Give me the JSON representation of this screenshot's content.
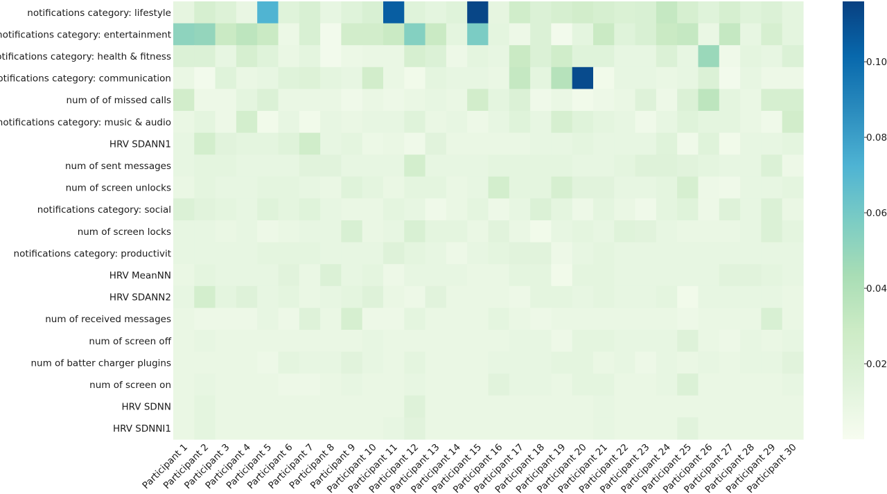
{
  "chart_data": {
    "type": "heatmap",
    "colormap": "GnBu",
    "colormap_stops": [
      "#f7fcf0",
      "#e0f3db",
      "#ccebc5",
      "#a8ddb5",
      "#7bccc4",
      "#4eb3d3",
      "#2b8cbe",
      "#0868ac",
      "#084081"
    ],
    "vmin": 0.0,
    "vmax": 0.116,
    "colorbar_ticks": [
      0.02,
      0.04,
      0.06,
      0.08,
      0.1
    ],
    "colorbar_tick_labels": [
      "0.02",
      "0.04",
      "0.06",
      "0.08",
      "0.10"
    ],
    "x_categories": [
      "Participant 1",
      "Participant 2",
      "Participant 3",
      "Participant 4",
      "Participant 5",
      "Participant 6",
      "Participant 7",
      "Participant 8",
      "Participant 9",
      "Participant 10",
      "Participant 11",
      "Participant 12",
      "Participant 13",
      "Participant 14",
      "Participant 15",
      "Participant 16",
      "Participant 17",
      "Participant 18",
      "Participant 19",
      "Participant 20",
      "Participant 21",
      "Participant 22",
      "Participant 23",
      "Participant 24",
      "Participant 25",
      "Participant 26",
      "Participant 27",
      "Participant 28",
      "Participant 29",
      "Participant 30"
    ],
    "y_categories": [
      "notifications category: lifestyle",
      "notifications category: entertainment",
      "notifications category: health & fitness",
      "notifications category: communication",
      "num of of missed calls",
      "notifications category: music & audio",
      "HRV SDANN1",
      "num of sent messages",
      "num of screen unlocks",
      "notifications category: social",
      "num of screen locks",
      "notifications category: productivit",
      "HRV MeanNN",
      "HRV SDANN2",
      "num of received messages",
      "num of screen off",
      "num of batter charger plugins",
      "num of screen on",
      "HRV SDNN",
      "HRV SDNNI1"
    ],
    "values": [
      [
        0.011,
        0.022,
        0.017,
        0.009,
        0.072,
        0.015,
        0.02,
        0.01,
        0.015,
        0.02,
        0.105,
        0.015,
        0.012,
        0.015,
        0.114,
        0.011,
        0.026,
        0.018,
        0.022,
        0.025,
        0.022,
        0.019,
        0.02,
        0.032,
        0.022,
        0.015,
        0.022,
        0.015,
        0.018,
        0.012
      ],
      [
        0.052,
        0.05,
        0.03,
        0.035,
        0.03,
        0.007,
        0.02,
        0.003,
        0.025,
        0.025,
        0.03,
        0.055,
        0.03,
        0.012,
        0.058,
        0.012,
        0.006,
        0.018,
        0.003,
        0.012,
        0.03,
        0.015,
        0.02,
        0.03,
        0.032,
        0.008,
        0.032,
        0.01,
        0.022,
        0.012
      ],
      [
        0.018,
        0.018,
        0.01,
        0.022,
        0.015,
        0.008,
        0.012,
        0.003,
        0.007,
        0.008,
        0.008,
        0.022,
        0.018,
        0.006,
        0.012,
        0.01,
        0.03,
        0.018,
        0.026,
        0.015,
        0.015,
        0.01,
        0.01,
        0.018,
        0.01,
        0.048,
        0.005,
        0.012,
        0.01,
        0.018
      ],
      [
        0.008,
        0.003,
        0.015,
        0.008,
        0.01,
        0.015,
        0.017,
        0.012,
        0.01,
        0.025,
        0.008,
        0.004,
        0.012,
        0.01,
        0.01,
        0.008,
        0.032,
        0.012,
        0.038,
        0.112,
        0.004,
        0.01,
        0.01,
        0.008,
        0.01,
        0.018,
        0.003,
        0.01,
        0.006,
        0.006
      ],
      [
        0.025,
        0.006,
        0.006,
        0.012,
        0.018,
        0.008,
        0.008,
        0.008,
        0.005,
        0.008,
        0.006,
        0.008,
        0.01,
        0.008,
        0.025,
        0.012,
        0.018,
        0.005,
        0.008,
        0.004,
        0.006,
        0.008,
        0.016,
        0.006,
        0.018,
        0.035,
        0.012,
        0.008,
        0.022,
        0.022
      ],
      [
        0.008,
        0.012,
        0.006,
        0.024,
        0.004,
        0.01,
        0.004,
        0.01,
        0.008,
        0.01,
        0.01,
        0.015,
        0.008,
        0.01,
        0.006,
        0.01,
        0.015,
        0.01,
        0.022,
        0.015,
        0.012,
        0.01,
        0.005,
        0.01,
        0.015,
        0.012,
        0.012,
        0.008,
        0.005,
        0.025
      ],
      [
        0.01,
        0.024,
        0.014,
        0.012,
        0.012,
        0.015,
        0.026,
        0.01,
        0.012,
        0.007,
        0.008,
        0.005,
        0.014,
        0.008,
        0.008,
        0.008,
        0.008,
        0.01,
        0.01,
        0.012,
        0.01,
        0.01,
        0.01,
        0.015,
        0.005,
        0.015,
        0.004,
        0.01,
        0.01,
        0.012
      ],
      [
        0.01,
        0.012,
        0.012,
        0.01,
        0.01,
        0.01,
        0.014,
        0.014,
        0.01,
        0.01,
        0.01,
        0.024,
        0.01,
        0.01,
        0.01,
        0.012,
        0.012,
        0.012,
        0.012,
        0.01,
        0.01,
        0.012,
        0.016,
        0.016,
        0.014,
        0.012,
        0.01,
        0.01,
        0.018,
        0.006
      ],
      [
        0.008,
        0.012,
        0.01,
        0.01,
        0.012,
        0.012,
        0.01,
        0.008,
        0.015,
        0.012,
        0.008,
        0.012,
        0.012,
        0.008,
        0.01,
        0.024,
        0.012,
        0.012,
        0.022,
        0.014,
        0.014,
        0.01,
        0.01,
        0.012,
        0.022,
        0.006,
        0.005,
        0.01,
        0.01,
        0.012
      ],
      [
        0.018,
        0.014,
        0.012,
        0.01,
        0.015,
        0.012,
        0.015,
        0.01,
        0.008,
        0.008,
        0.012,
        0.01,
        0.005,
        0.008,
        0.012,
        0.006,
        0.01,
        0.018,
        0.012,
        0.006,
        0.012,
        0.008,
        0.005,
        0.012,
        0.015,
        0.006,
        0.016,
        0.01,
        0.018,
        0.008
      ],
      [
        0.01,
        0.01,
        0.008,
        0.01,
        0.006,
        0.008,
        0.01,
        0.01,
        0.02,
        0.008,
        0.01,
        0.02,
        0.012,
        0.012,
        0.008,
        0.014,
        0.008,
        0.004,
        0.01,
        0.012,
        0.01,
        0.015,
        0.014,
        0.01,
        0.008,
        0.008,
        0.008,
        0.01,
        0.018,
        0.012
      ],
      [
        0.01,
        0.01,
        0.01,
        0.01,
        0.012,
        0.012,
        0.012,
        0.01,
        0.01,
        0.01,
        0.016,
        0.012,
        0.01,
        0.006,
        0.01,
        0.012,
        0.014,
        0.014,
        0.006,
        0.01,
        0.012,
        0.01,
        0.01,
        0.01,
        0.01,
        0.01,
        0.01,
        0.01,
        0.01,
        0.01
      ],
      [
        0.008,
        0.012,
        0.01,
        0.01,
        0.01,
        0.014,
        0.008,
        0.018,
        0.01,
        0.012,
        0.006,
        0.01,
        0.01,
        0.01,
        0.008,
        0.008,
        0.012,
        0.012,
        0.004,
        0.012,
        0.012,
        0.01,
        0.01,
        0.01,
        0.01,
        0.01,
        0.014,
        0.014,
        0.012,
        0.01
      ],
      [
        0.01,
        0.024,
        0.012,
        0.016,
        0.01,
        0.012,
        0.008,
        0.01,
        0.012,
        0.016,
        0.008,
        0.006,
        0.014,
        0.008,
        0.008,
        0.008,
        0.006,
        0.012,
        0.012,
        0.01,
        0.012,
        0.01,
        0.01,
        0.012,
        0.004,
        0.01,
        0.01,
        0.01,
        0.01,
        0.008
      ],
      [
        0.008,
        0.006,
        0.006,
        0.006,
        0.01,
        0.006,
        0.016,
        0.008,
        0.022,
        0.006,
        0.006,
        0.012,
        0.008,
        0.008,
        0.008,
        0.012,
        0.008,
        0.006,
        0.008,
        0.008,
        0.008,
        0.008,
        0.008,
        0.008,
        0.006,
        0.008,
        0.008,
        0.008,
        0.02,
        0.008
      ],
      [
        0.008,
        0.01,
        0.008,
        0.008,
        0.008,
        0.008,
        0.008,
        0.008,
        0.008,
        0.01,
        0.008,
        0.008,
        0.008,
        0.008,
        0.008,
        0.008,
        0.01,
        0.01,
        0.006,
        0.012,
        0.012,
        0.01,
        0.01,
        0.01,
        0.016,
        0.008,
        0.006,
        0.01,
        0.008,
        0.01
      ],
      [
        0.008,
        0.008,
        0.008,
        0.008,
        0.006,
        0.012,
        0.01,
        0.01,
        0.014,
        0.01,
        0.008,
        0.012,
        0.008,
        0.008,
        0.008,
        0.01,
        0.01,
        0.01,
        0.012,
        0.012,
        0.008,
        0.01,
        0.006,
        0.01,
        0.008,
        0.01,
        0.008,
        0.01,
        0.01,
        0.014
      ],
      [
        0.008,
        0.01,
        0.008,
        0.008,
        0.008,
        0.006,
        0.006,
        0.008,
        0.01,
        0.008,
        0.008,
        0.01,
        0.008,
        0.008,
        0.008,
        0.014,
        0.01,
        0.01,
        0.008,
        0.012,
        0.012,
        0.008,
        0.008,
        0.01,
        0.018,
        0.008,
        0.008,
        0.008,
        0.008,
        0.01
      ],
      [
        0.008,
        0.012,
        0.008,
        0.008,
        0.008,
        0.008,
        0.008,
        0.008,
        0.008,
        0.008,
        0.008,
        0.016,
        0.008,
        0.008,
        0.008,
        0.008,
        0.008,
        0.008,
        0.008,
        0.008,
        0.01,
        0.008,
        0.008,
        0.008,
        0.008,
        0.008,
        0.008,
        0.008,
        0.008,
        0.008
      ],
      [
        0.008,
        0.012,
        0.008,
        0.008,
        0.008,
        0.008,
        0.008,
        0.008,
        0.008,
        0.008,
        0.01,
        0.014,
        0.008,
        0.008,
        0.008,
        0.008,
        0.008,
        0.008,
        0.008,
        0.008,
        0.01,
        0.008,
        0.008,
        0.008,
        0.014,
        0.008,
        0.008,
        0.008,
        0.008,
        0.008
      ]
    ]
  }
}
